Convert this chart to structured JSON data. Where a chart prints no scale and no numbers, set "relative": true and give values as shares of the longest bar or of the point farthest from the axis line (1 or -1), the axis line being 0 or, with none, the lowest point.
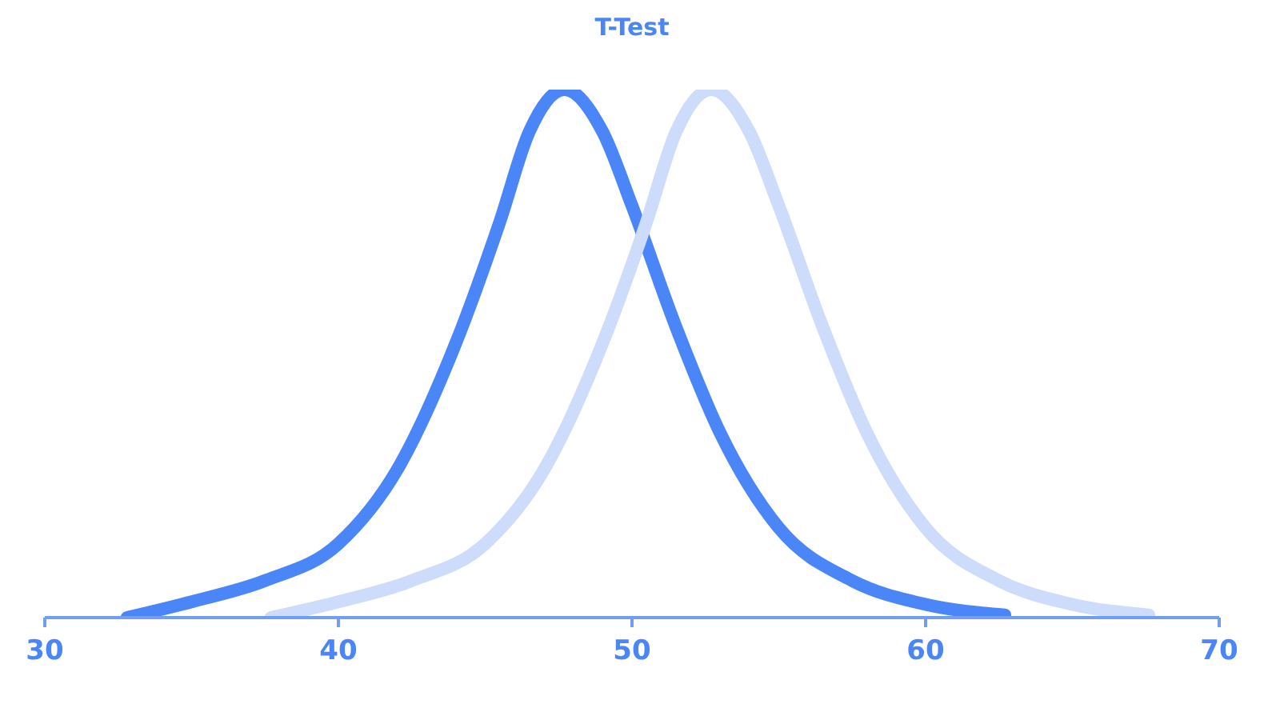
{
  "chart_data": {
    "type": "line",
    "title": "T-Test",
    "relative": true,
    "marker": "none",
    "line_style": "solid",
    "xlim": [
      30,
      70
    ],
    "xticks": [
      30,
      40,
      50,
      60,
      70
    ],
    "tick_labels": "x",
    "series": [
      {
        "color": "#4a86f7",
        "x": [
          32.8,
          35,
          37.5,
          40,
          42,
          44,
          45.5,
          46.5,
          47.7,
          49,
          50,
          51.5,
          53,
          55,
          57.5,
          60,
          62.7
        ],
        "values": [
          0,
          0.03,
          0.07,
          0.14,
          0.28,
          0.52,
          0.75,
          0.92,
          1,
          0.92,
          0.78,
          0.55,
          0.35,
          0.17,
          0.07,
          0.025,
          0.005
        ]
      },
      {
        "color": "#cddcfb",
        "x": [
          37.7,
          40,
          42.5,
          45,
          47,
          49,
          50.5,
          51.5,
          52.7,
          54,
          55,
          56.5,
          58,
          60,
          62.5,
          65,
          67.6
        ],
        "values": [
          0,
          0.03,
          0.07,
          0.14,
          0.28,
          0.52,
          0.75,
          0.92,
          1,
          0.92,
          0.78,
          0.55,
          0.35,
          0.17,
          0.07,
          0.025,
          0.005
        ]
      }
    ]
  }
}
